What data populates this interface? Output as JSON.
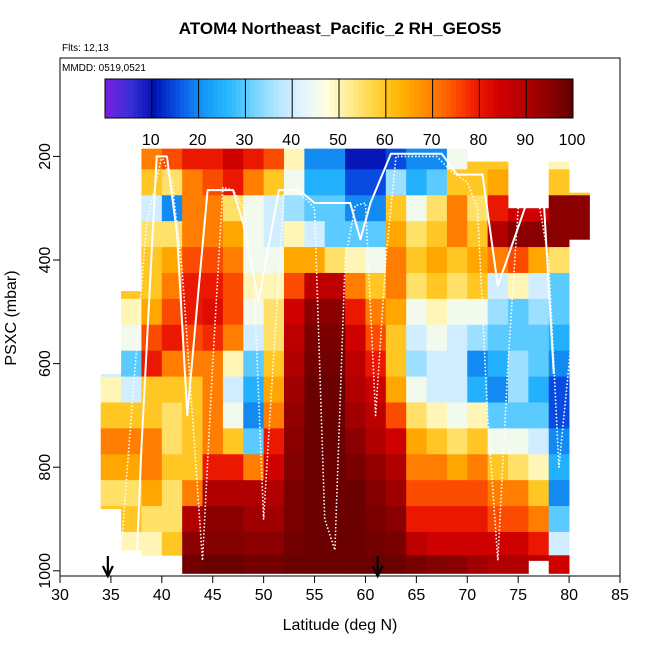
{
  "chart_data": {
    "type": "heatmap",
    "title": "ATOM4 Northeast_Pacific_2 RH_GEOS5",
    "annotations": {
      "flights": "Flts: 12,13",
      "dates": "MMDD: 0519,0521"
    },
    "xlabel": "Latitude (deg N)",
    "ylabel": "PSXC (mbar)",
    "xlim": [
      30,
      85
    ],
    "ylim": [
      1010,
      10
    ],
    "y_inverted": true,
    "x_ticks": [
      30,
      35,
      40,
      45,
      50,
      55,
      60,
      65,
      70,
      75,
      80,
      85
    ],
    "y_ticks": [
      200,
      400,
      600,
      800,
      1000
    ],
    "colorbar": {
      "range": [
        0,
        100
      ],
      "ticks": [
        10,
        20,
        30,
        40,
        50,
        60,
        70,
        80,
        90,
        100
      ],
      "colors": [
        "#7a1fe0",
        "#3a2fd8",
        "#0014b4",
        "#0a55e8",
        "#1497f5",
        "#28b8ff",
        "#70d2ff",
        "#b4e6ff",
        "#e2f4ff",
        "#ffffe0",
        "#ffeb8c",
        "#ffd23c",
        "#ffb400",
        "#ff8c00",
        "#ff5a00",
        "#f01e00",
        "#d20000",
        "#b40000",
        "#8c0000",
        "#620000"
      ]
    },
    "markers": [
      {
        "label": "arrow",
        "x": 34.7
      },
      {
        "label": "arrow",
        "x": 61.2
      }
    ],
    "curtain": {
      "description_x": "latitude columns",
      "x": [
        35,
        37,
        39,
        41,
        43,
        45,
        47,
        49,
        51,
        53,
        55,
        57,
        59,
        61,
        63,
        65,
        67,
        69,
        71,
        73,
        75,
        77,
        79,
        81
      ],
      "column_top": [
        620,
        460,
        185,
        185,
        185,
        185,
        185,
        185,
        185,
        185,
        185,
        185,
        185,
        185,
        185,
        185,
        185,
        185,
        210,
        210,
        300,
        300,
        210,
        270
      ],
      "column_bottom": [
        880,
        960,
        970,
        970,
        1005,
        1005,
        1005,
        1005,
        1005,
        1005,
        1005,
        1005,
        1005,
        1005,
        1005,
        1005,
        1005,
        1005,
        1005,
        1005,
        1005,
        980,
        1005,
        360
      ],
      "pressure_levels": [
        200,
        250,
        300,
        350,
        400,
        450,
        500,
        550,
        600,
        650,
        700,
        750,
        800,
        850,
        900,
        950,
        990
      ],
      "rh": [
        [
          60,
          60,
          60,
          60,
          60,
          60,
          60,
          45,
          40,
          50,
          60,
          70,
          65,
          55,
          60,
          60,
          60
        ],
        [
          60,
          60,
          60,
          60,
          60,
          60,
          50,
          45,
          30,
          40,
          60,
          70,
          65,
          55,
          60,
          50,
          40
        ],
        [
          70,
          60,
          40,
          55,
          60,
          60,
          65,
          75,
          80,
          60,
          60,
          70,
          70,
          65,
          55,
          50,
          30
        ],
        [
          75,
          55,
          20,
          55,
          65,
          70,
          75,
          80,
          70,
          60,
          55,
          55,
          60,
          55,
          55,
          60,
          90
        ],
        [
          80,
          70,
          70,
          70,
          75,
          80,
          80,
          75,
          70,
          60,
          60,
          60,
          60,
          70,
          90,
          95,
          98
        ],
        [
          80,
          75,
          70,
          70,
          75,
          80,
          82,
          78,
          70,
          70,
          70,
          70,
          80,
          90,
          95,
          96,
          99
        ],
        [
          85,
          80,
          55,
          65,
          70,
          75,
          75,
          70,
          50,
          40,
          45,
          60,
          80,
          90,
          95,
          96,
          99
        ],
        [
          80,
          70,
          45,
          45,
          45,
          50,
          45,
          40,
          30,
          25,
          20,
          30,
          70,
          90,
          92,
          95,
          98
        ],
        [
          75,
          60,
          40,
          40,
          45,
          50,
          55,
          55,
          60,
          65,
          70,
          80,
          85,
          90,
          92,
          95,
          98
        ],
        [
          50,
          45,
          35,
          50,
          65,
          75,
          85,
          88,
          90,
          92,
          94,
          95,
          96,
          97,
          97,
          98,
          99
        ],
        [
          20,
          25,
          30,
          40,
          65,
          88,
          95,
          97,
          98,
          99,
          99,
          99,
          99,
          99,
          99,
          99,
          99
        ],
        [
          20,
          25,
          30,
          30,
          55,
          88,
          95,
          97,
          98,
          99,
          99,
          99,
          99,
          99,
          99,
          99,
          99
        ],
        [
          10,
          15,
          20,
          30,
          50,
          70,
          80,
          85,
          88,
          90,
          92,
          95,
          97,
          99,
          99,
          99,
          99
        ],
        [
          10,
          15,
          20,
          30,
          45,
          60,
          70,
          75,
          80,
          85,
          88,
          90,
          94,
          96,
          97,
          98,
          99
        ],
        [
          15,
          35,
          60,
          65,
          70,
          70,
          65,
          60,
          60,
          65,
          75,
          85,
          90,
          92,
          95,
          97,
          99
        ],
        [
          20,
          25,
          45,
          55,
          60,
          55,
          45,
          40,
          35,
          45,
          55,
          65,
          70,
          75,
          80,
          88,
          97
        ],
        [
          20,
          30,
          55,
          60,
          65,
          60,
          50,
          45,
          40,
          40,
          50,
          60,
          70,
          75,
          80,
          85,
          96
        ],
        [
          45,
          60,
          70,
          70,
          60,
          55,
          45,
          40,
          40,
          40,
          45,
          55,
          65,
          75,
          80,
          85,
          95
        ],
        [
          60,
          60,
          55,
          60,
          65,
          60,
          45,
          35,
          20,
          25,
          50,
          60,
          70,
          75,
          80,
          85,
          92
        ],
        [
          60,
          65,
          80,
          90,
          70,
          40,
          35,
          30,
          25,
          20,
          30,
          45,
          60,
          70,
          75,
          85,
          90
        ],
        [
          60,
          60,
          85,
          95,
          75,
          50,
          30,
          30,
          35,
          35,
          30,
          45,
          55,
          70,
          75,
          85,
          90
        ],
        [
          60,
          60,
          85,
          95,
          65,
          40,
          35,
          30,
          30,
          25,
          30,
          40,
          50,
          60,
          70,
          80,
          88
        ],
        [
          50,
          60,
          95,
          95,
          55,
          30,
          30,
          25,
          20,
          15,
          15,
          20,
          25,
          20,
          30,
          40,
          85
        ],
        [
          60,
          60,
          95,
          95,
          60,
          50,
          50,
          50,
          50,
          50,
          50,
          50,
          50,
          50,
          50,
          50,
          50
        ]
      ]
    },
    "overlay_lines": [
      {
        "style": "solid",
        "color": "#ffffff",
        "x": [
          37.5,
          38,
          39.5,
          40.5,
          41.5,
          42.5,
          43.5,
          44.5,
          45.5,
          47,
          48,
          49.5,
          51.5,
          53.5,
          55,
          56.5,
          58.5,
          59.5,
          60.5,
          62.5,
          65,
          67.5,
          69,
          71.5,
          73,
          76,
          77.5,
          78.5
        ],
        "y": [
          990,
          760,
          200,
          200,
          350,
          700,
          480,
          265,
          265,
          265,
          330,
          480,
          265,
          265,
          290,
          290,
          290,
          360,
          290,
          195,
          195,
          195,
          235,
          235,
          450,
          280,
          280,
          620
        ]
      },
      {
        "style": "dotted",
        "color": "#ffffff",
        "x": [
          36,
          37,
          38.5,
          40,
          41,
          42,
          43,
          44,
          45,
          46,
          47,
          48,
          49,
          50,
          51,
          52,
          53,
          54,
          55,
          56,
          57,
          58,
          59,
          60,
          61,
          62,
          63,
          65,
          67,
          68.5,
          70,
          71,
          72,
          73,
          74,
          75,
          76,
          77,
          78,
          79,
          80,
          81
        ],
        "y": [
          960,
          700,
          330,
          200,
          250,
          420,
          700,
          980,
          600,
          260,
          265,
          300,
          420,
          900,
          580,
          270,
          265,
          280,
          300,
          900,
          960,
          400,
          295,
          290,
          700,
          400,
          200,
          200,
          200,
          230,
          250,
          300,
          700,
          980,
          600,
          300,
          285,
          285,
          400,
          800,
          600,
          360
        ]
      }
    ]
  }
}
